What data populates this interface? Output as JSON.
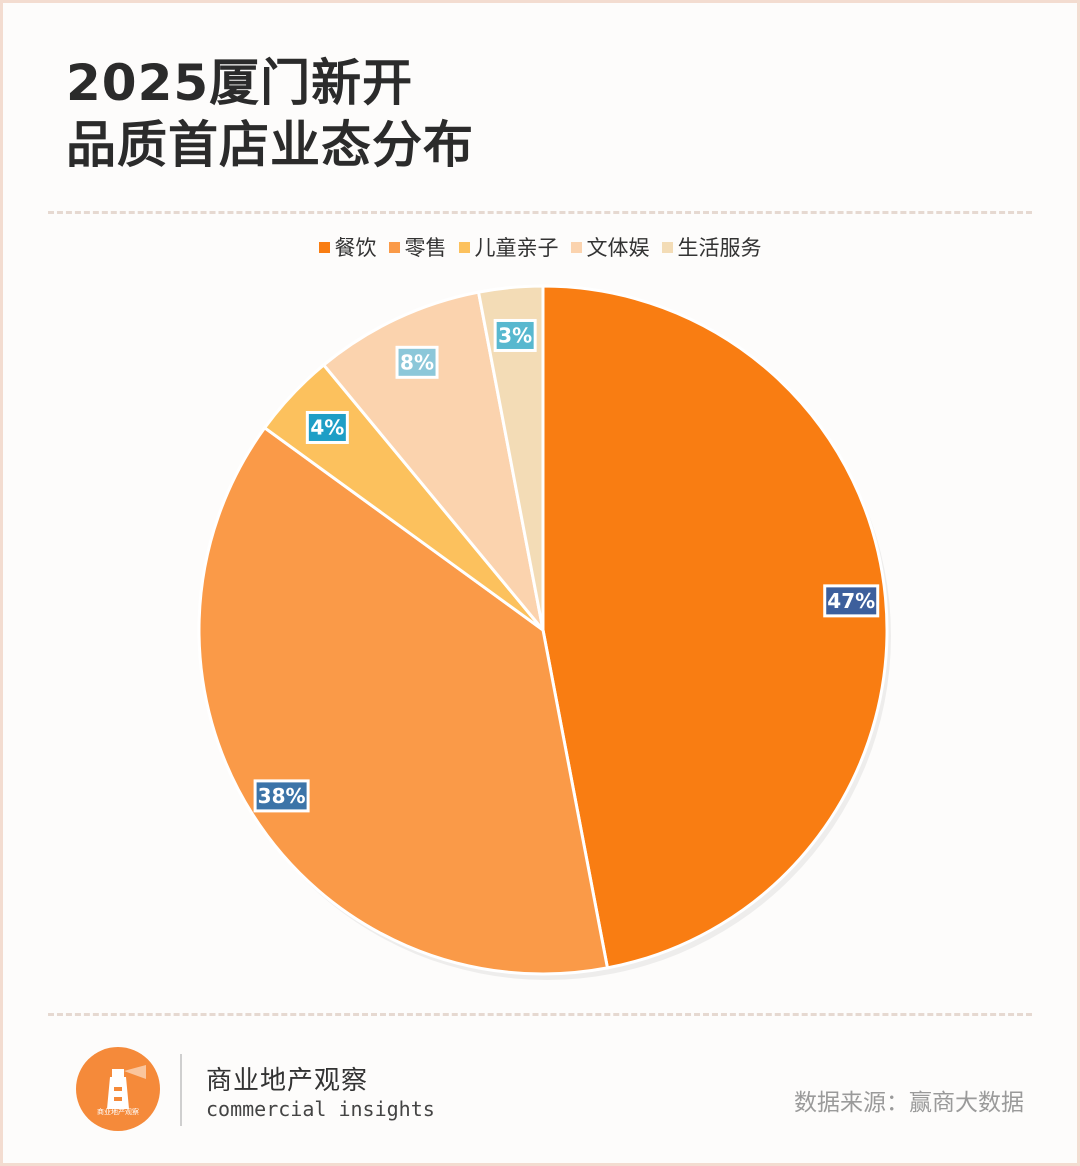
{
  "title_lines": [
    "2025厦门新开",
    "品质首店业态分布"
  ],
  "brand": {
    "name_cn": "商业地产观察",
    "name_en": "commercial insights",
    "logo_text": "商业地产观察"
  },
  "source": "数据来源：赢商大数据",
  "chart_data": {
    "type": "pie",
    "categories": [
      "餐饮",
      "零售",
      "儿童亲子",
      "文体娱",
      "生活服务"
    ],
    "values": [
      47,
      38,
      4,
      8,
      3
    ],
    "data_labels": [
      "47%",
      "38%",
      "4%",
      "8%",
      "3%"
    ],
    "colors": [
      "#f97d12",
      "#fa9a48",
      "#fcc15d",
      "#fbd3ae",
      "#f3dcb6"
    ],
    "label_colors": [
      "#3d5f9c",
      "#3c74a8",
      "#1e9ec6",
      "#8cc7d9",
      "#58b8cf"
    ],
    "legend_position": "top"
  }
}
